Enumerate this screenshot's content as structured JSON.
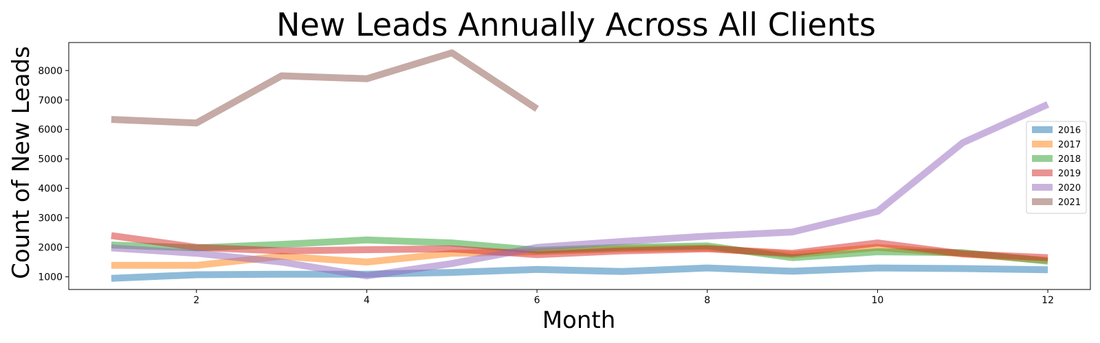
{
  "chart_data": {
    "type": "line",
    "title": "New Leads Annually Across All Clients",
    "xlabel": "Month",
    "ylabel": "Count of New Leads",
    "xlim": [
      0.5,
      12.5
    ],
    "ylim": [
      570,
      8950
    ],
    "xticks": [
      2,
      4,
      6,
      8,
      10,
      12
    ],
    "yticks": [
      1000,
      2000,
      3000,
      4000,
      5000,
      6000,
      7000,
      8000
    ],
    "grid": false,
    "legend_position": "right",
    "series": [
      {
        "name": "2016",
        "color": "#1f77b4",
        "x": [
          1,
          2,
          3,
          4,
          5,
          6,
          7,
          8,
          9,
          10,
          11,
          12
        ],
        "values": [
          950,
          1070,
          1090,
          1090,
          1150,
          1250,
          1180,
          1300,
          1190,
          1300,
          1280,
          1240
        ]
      },
      {
        "name": "2017",
        "color": "#ff7f0e",
        "x": [
          1,
          2,
          3,
          4,
          5,
          6,
          7,
          8,
          9,
          10,
          11,
          12
        ],
        "values": [
          1390,
          1390,
          1700,
          1500,
          1800,
          1850,
          1950,
          1980,
          1750,
          2000,
          1780,
          1560
        ]
      },
      {
        "name": "2018",
        "color": "#2ca02c",
        "x": [
          1,
          2,
          3,
          4,
          5,
          6,
          7,
          8,
          9,
          10,
          11,
          12
        ],
        "values": [
          2080,
          1980,
          2100,
          2250,
          2150,
          1900,
          2000,
          2050,
          1650,
          1850,
          1820,
          1530
        ]
      },
      {
        "name": "2019",
        "color": "#d62728",
        "x": [
          1,
          2,
          3,
          4,
          5,
          6,
          7,
          8,
          9,
          10,
          11,
          12
        ],
        "values": [
          2400,
          2000,
          1880,
          1920,
          1950,
          1750,
          1880,
          1950,
          1800,
          2150,
          1780,
          1650
        ]
      },
      {
        "name": "2020",
        "color": "#9467bd",
        "x": [
          1,
          2,
          3,
          4,
          5,
          6,
          7,
          8,
          9,
          10,
          11,
          12
        ],
        "values": [
          1980,
          1800,
          1500,
          1030,
          1450,
          2000,
          2200,
          2380,
          2520,
          3220,
          5550,
          6850
        ]
      },
      {
        "name": "2021",
        "color": "#8c564b",
        "x": [
          1,
          2,
          3,
          4,
          5,
          6
        ],
        "values": [
          6340,
          6220,
          7820,
          7720,
          8600,
          6700
        ]
      }
    ]
  }
}
